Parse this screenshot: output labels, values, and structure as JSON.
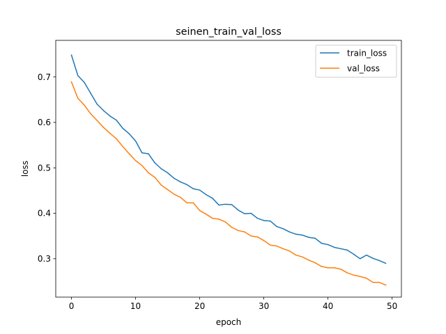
{
  "chart_data": {
    "type": "line",
    "title": "seinen_train_val_loss",
    "xlabel": "epoch",
    "ylabel": "loss",
    "xlim": [
      -2.45,
      51.45
    ],
    "ylim": [
      0.2155,
      0.7805
    ],
    "xticks": [
      0,
      10,
      20,
      30,
      40,
      50
    ],
    "yticks": [
      0.3,
      0.4,
      0.5,
      0.6,
      0.7
    ],
    "xtick_labels": [
      "0",
      "10",
      "20",
      "30",
      "40",
      "50"
    ],
    "ytick_labels": [
      "0.3",
      "0.4",
      "0.5",
      "0.6",
      "0.7"
    ],
    "grid": false,
    "legend_position": "upper right",
    "x": [
      0,
      1,
      2,
      3,
      4,
      5,
      6,
      7,
      8,
      9,
      10,
      11,
      12,
      13,
      14,
      15,
      16,
      17,
      18,
      19,
      20,
      21,
      22,
      23,
      24,
      25,
      26,
      27,
      28,
      29,
      30,
      31,
      32,
      33,
      34,
      35,
      36,
      37,
      38,
      39,
      40,
      41,
      42,
      43,
      44,
      45,
      46,
      47,
      48,
      49
    ],
    "series": [
      {
        "name": "train_loss",
        "color": "#1f77b4",
        "values": [
          0.748,
          0.703,
          0.688,
          0.664,
          0.64,
          0.626,
          0.614,
          0.605,
          0.587,
          0.575,
          0.559,
          0.533,
          0.531,
          0.511,
          0.498,
          0.489,
          0.477,
          0.469,
          0.463,
          0.454,
          0.451,
          0.441,
          0.433,
          0.418,
          0.42,
          0.419,
          0.407,
          0.399,
          0.4,
          0.389,
          0.384,
          0.383,
          0.371,
          0.366,
          0.359,
          0.354,
          0.352,
          0.347,
          0.345,
          0.334,
          0.331,
          0.325,
          0.322,
          0.319,
          0.31,
          0.3,
          0.308,
          0.301,
          0.296,
          0.29
        ]
      },
      {
        "name": "val_loss",
        "color": "#ff7f0e",
        "values": [
          0.689,
          0.653,
          0.638,
          0.619,
          0.604,
          0.589,
          0.576,
          0.564,
          0.547,
          0.531,
          0.516,
          0.505,
          0.489,
          0.479,
          0.462,
          0.452,
          0.442,
          0.435,
          0.423,
          0.423,
          0.406,
          0.398,
          0.389,
          0.387,
          0.381,
          0.369,
          0.362,
          0.359,
          0.35,
          0.348,
          0.34,
          0.33,
          0.328,
          0.322,
          0.317,
          0.308,
          0.304,
          0.297,
          0.291,
          0.283,
          0.28,
          0.28,
          0.277,
          0.269,
          0.264,
          0.261,
          0.257,
          0.248,
          0.248,
          0.242
        ]
      }
    ]
  }
}
